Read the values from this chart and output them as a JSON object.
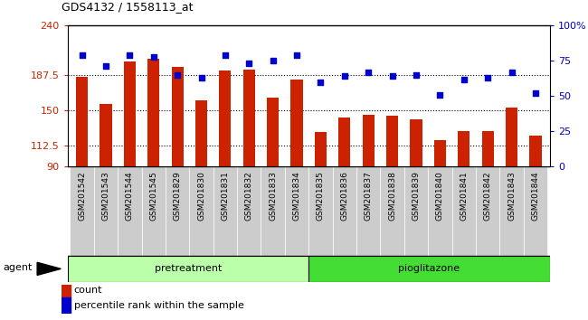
{
  "title": "GDS4132 / 1558113_at",
  "categories": [
    "GSM201542",
    "GSM201543",
    "GSM201544",
    "GSM201545",
    "GSM201829",
    "GSM201830",
    "GSM201831",
    "GSM201832",
    "GSM201833",
    "GSM201834",
    "GSM201835",
    "GSM201836",
    "GSM201837",
    "GSM201838",
    "GSM201839",
    "GSM201840",
    "GSM201841",
    "GSM201842",
    "GSM201843",
    "GSM201844"
  ],
  "bar_values": [
    185,
    157,
    202,
    205,
    196,
    160,
    192,
    193,
    163,
    183,
    127,
    142,
    145,
    144,
    140,
    118,
    128,
    128,
    153,
    123
  ],
  "scatter_values": [
    79,
    71,
    79,
    78,
    65,
    63,
    79,
    73,
    75,
    79,
    60,
    64,
    67,
    64,
    65,
    51,
    62,
    63,
    67,
    52
  ],
  "bar_color": "#cc2200",
  "scatter_color": "#0000cc",
  "ylim_left": [
    90,
    240
  ],
  "ylim_right": [
    0,
    100
  ],
  "yticks_left": [
    90,
    112.5,
    150,
    187.5,
    240
  ],
  "yticks_right": [
    0,
    25,
    50,
    75,
    100
  ],
  "ytick_labels_left": [
    "90",
    "112.5",
    "150",
    "187.5",
    "240"
  ],
  "ytick_labels_right": [
    "0",
    "25",
    "50",
    "75",
    "100%"
  ],
  "hlines": [
    112.5,
    150,
    187.5
  ],
  "group1_label": "pretreatment",
  "group2_label": "pioglitazone",
  "group1_count": 10,
  "group2_count": 10,
  "agent_label": "agent",
  "legend_bar_label": "count",
  "legend_scatter_label": "percentile rank within the sample",
  "xtick_bg": "#cccccc",
  "group1_color": "#bbffaa",
  "group2_color": "#44dd33",
  "bar_width": 0.5,
  "bg_color": "white"
}
